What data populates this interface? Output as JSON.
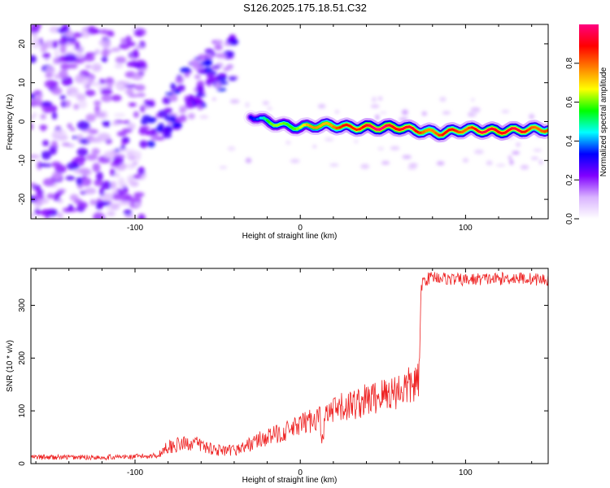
{
  "title": "S126.2025.175.18.51.C32",
  "chart_data": [
    {
      "type": "heatmap",
      "xlabel": "Height of straight line (km)",
      "ylabel": "Frequency (Hz)",
      "xlim": [
        -163,
        150
      ],
      "ylim": [
        -25,
        25
      ],
      "x_ticks": [
        -100,
        0,
        100
      ],
      "y_ticks": [
        -20,
        -10,
        0,
        10,
        20
      ],
      "colorbar": {
        "label": "Normalized spectral amplitude",
        "range": [
          0,
          1
        ],
        "ticks": [
          0.0,
          0.2,
          0.4,
          0.6,
          0.8
        ],
        "colormap": [
          "#ffffff",
          "#d9b3ff",
          "#8000ff",
          "#0000ff",
          "#00ffff",
          "#00ff00",
          "#ffff00",
          "#ff8000",
          "#ff0000",
          "#ff0080"
        ]
      },
      "ridge": [
        {
          "x": -30,
          "y": 1.5,
          "amp": 0.35
        },
        {
          "x": -20,
          "y": 0.0,
          "amp": 0.55
        },
        {
          "x": -10,
          "y": -1.0,
          "amp": 0.6
        },
        {
          "x": 0,
          "y": -1.5,
          "amp": 0.65
        },
        {
          "x": 10,
          "y": -1.0,
          "amp": 0.75
        },
        {
          "x": 20,
          "y": -1.0,
          "amp": 0.8
        },
        {
          "x": 30,
          "y": -1.5,
          "amp": 0.85
        },
        {
          "x": 40,
          "y": -1.5,
          "amp": 0.95
        },
        {
          "x": 60,
          "y": -1.5,
          "amp": 0.95
        },
        {
          "x": 75,
          "y": -2.5,
          "amp": 0.8
        },
        {
          "x": 85,
          "y": -3.0,
          "amp": 0.85
        },
        {
          "x": 100,
          "y": -2.0,
          "amp": 0.85
        },
        {
          "x": 120,
          "y": -2.5,
          "amp": 0.95
        },
        {
          "x": 140,
          "y": -2.0,
          "amp": 0.85
        },
        {
          "x": 150,
          "y": -2.0,
          "amp": 0.8
        }
      ]
    },
    {
      "type": "line",
      "xlabel": "Height of straight line (km)",
      "ylabel": "SNR (10 * v/v)",
      "xlim": [
        -163,
        150
      ],
      "ylim": [
        0,
        370
      ],
      "x_ticks": [
        -100,
        0,
        100
      ],
      "y_ticks": [
        0,
        100,
        200,
        300
      ],
      "series": [
        {
          "color": "#ee2222",
          "x": [
            -163,
            -140,
            -120,
            -100,
            -85,
            -82,
            -75,
            -65,
            -55,
            -45,
            -35,
            -25,
            -15,
            -5,
            5,
            12,
            13,
            15,
            25,
            35,
            45,
            55,
            65,
            72,
            73,
            74,
            80,
            90,
            100,
            110,
            120,
            130,
            140,
            150
          ],
          "y": [
            12,
            12,
            12,
            13,
            16,
            30,
            35,
            40,
            30,
            22,
            30,
            45,
            55,
            65,
            80,
            90,
            30,
            90,
            105,
            115,
            125,
            135,
            145,
            155,
            330,
            345,
            355,
            350,
            348,
            350,
            350,
            352,
            350,
            348
          ]
        }
      ]
    }
  ]
}
